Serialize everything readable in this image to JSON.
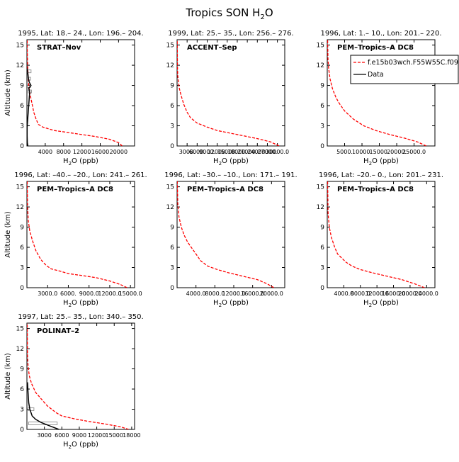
{
  "figure": {
    "title": "Tropics SON H",
    "title_sub": "2",
    "title_tail": "O"
  },
  "colors": {
    "model": "#ff0000",
    "data": "#000000",
    "range": "#999999",
    "frame": "#000000"
  },
  "chart_data": [
    {
      "type": "line",
      "header": "1995, Lat: 18.– 24., Lon: 196.– 204.",
      "campaign": "STRAT–Nov",
      "xlabel_pre": "H",
      "xlabel_sub": "2",
      "xlabel_post": "O (ppb)",
      "ylabel": "Altitude (km)",
      "xlim": [
        0,
        23500
      ],
      "ylim": [
        0,
        15.8
      ],
      "xticks": [
        4000,
        8000,
        12000,
        16000,
        20000
      ],
      "xticklabels": [
        "4000",
        "8000",
        "12000",
        "16000",
        "20000"
      ],
      "yticks": [
        0,
        3,
        6,
        9,
        12,
        15
      ],
      "model": {
        "x": [
          20800,
          20000,
          18000,
          15000,
          12000,
          9000,
          6000,
          3500,
          2500,
          2000,
          1500,
          1200,
          900,
          600,
          400,
          300,
          150,
          80,
          60
        ],
        "y": [
          0,
          0.5,
          1.0,
          1.4,
          1.7,
          2.0,
          2.3,
          2.8,
          3.2,
          4.0,
          5.0,
          6.0,
          7.0,
          8.0,
          9.0,
          10.0,
          12.0,
          14.0,
          15.8
        ]
      },
      "data": {
        "x": [
          200,
          100,
          50,
          50,
          600,
          400,
          900,
          500,
          300,
          200,
          50
        ],
        "y": [
          0,
          0.5,
          1.5,
          2.8,
          8.0,
          8.6,
          9.0,
          9.5,
          10.2,
          10.8,
          11.5
        ]
      },
      "ranges": [
        {
          "y": 8.1,
          "x0": 300,
          "x1": 1000
        },
        {
          "y": 8.9,
          "x0": 100,
          "x1": 800
        },
        {
          "y": 10.0,
          "x0": 100,
          "x1": 800
        },
        {
          "y": 11.1,
          "x0": 100,
          "x1": 900
        }
      ],
      "legend": false
    },
    {
      "type": "line",
      "header": "1999, Lat: 25.– 35., Lon: 256.– 276.",
      "campaign": "ACCENT–Sep",
      "xlabel_pre": "H",
      "xlabel_sub": "2",
      "xlabel_post": "O (ppb)",
      "ylabel": "",
      "xlim": [
        0,
        32200
      ],
      "ylim": [
        0,
        15.8
      ],
      "xticks": [
        3000,
        6000,
        9000,
        12000,
        15000,
        18000,
        21000,
        24000,
        27000,
        30000
      ],
      "xticklabels": [
        "3000.",
        "6000.",
        "9000.",
        "12000.",
        "15000.",
        "18000.",
        "21000.",
        "24000.",
        "27000.",
        "30000.0"
      ],
      "yticks": [
        0,
        3,
        6,
        9,
        12,
        15
      ],
      "model": {
        "x": [
          30500,
          28000,
          24000,
          20000,
          16000,
          12000,
          9000,
          6000,
          4000,
          3000,
          2000,
          1200,
          700,
          400,
          200,
          100,
          50
        ],
        "y": [
          0,
          0.6,
          1.1,
          1.5,
          1.9,
          2.3,
          2.8,
          3.4,
          4.2,
          5.0,
          6.2,
          7.5,
          8.5,
          9.5,
          10.5,
          12.0,
          15.8
        ]
      },
      "data": null,
      "ranges": [],
      "legend": false
    },
    {
      "type": "line",
      "header": "1996, Lat: 1.– 10., Lon: 201.– 220.",
      "campaign": "PEM–Tropics–A DC8",
      "xlabel_pre": "H",
      "xlabel_sub": "2",
      "xlabel_post": "O (ppb)",
      "ylabel": "",
      "xlim": [
        0,
        31000
      ],
      "ylim": [
        0,
        15.8
      ],
      "xticks": [
        5000,
        10000,
        15000,
        20000,
        25000
      ],
      "xticklabels": [
        "5000.",
        "10000.",
        "15000.",
        "20000.",
        "25000.0"
      ],
      "yticks": [
        0,
        3,
        6,
        9,
        12,
        15
      ],
      "model": {
        "x": [
          28500,
          26000,
          22000,
          18000,
          14000,
          10500,
          7500,
          5000,
          3500,
          2500,
          1500,
          800,
          400,
          200,
          100
        ],
        "y": [
          0,
          0.6,
          1.2,
          1.7,
          2.3,
          3.0,
          4.0,
          5.2,
          6.3,
          7.2,
          8.5,
          10.0,
          11.5,
          13.0,
          15.8
        ]
      },
      "data": null,
      "ranges": [],
      "legend": true,
      "legend_items": [
        {
          "label": "f.e15b03wch.F55W55C.f09",
          "key": "model"
        },
        {
          "label": "Data",
          "key": "data"
        }
      ]
    },
    {
      "type": "line",
      "header": "1996, Lat: –40.– –20., Lon: 241.– 261.",
      "campaign": "PEM–Tropics–A DC8",
      "xlabel_pre": "H",
      "xlabel_sub": "2",
      "xlabel_post": "O (ppb)",
      "ylabel": "Altitude (km)",
      "xlim": [
        0,
        15600
      ],
      "ylim": [
        0,
        15.8
      ],
      "xticks": [
        3000,
        6000,
        9000,
        12000,
        15000
      ],
      "xticklabels": [
        "3000.0",
        "6000.",
        "9000.0",
        "12000.0",
        "15000.0"
      ],
      "yticks": [
        0,
        3,
        6,
        9,
        12,
        15
      ],
      "model": {
        "x": [
          14500,
          13500,
          12000,
          10000,
          8000,
          6000,
          5000,
          3500,
          2800,
          2000,
          1300,
          800,
          400,
          200,
          80,
          40
        ],
        "y": [
          0,
          0.5,
          1.0,
          1.5,
          1.8,
          2.1,
          2.4,
          2.8,
          3.3,
          4.2,
          5.5,
          7.0,
          8.5,
          10.0,
          12.5,
          15.8
        ]
      },
      "data": null,
      "ranges": [],
      "legend": false
    },
    {
      "type": "line",
      "header": "1996, Lat: –30.– –10., Lon: 171.– 191.",
      "campaign": "PEM–Tropics–A DC8",
      "xlabel_pre": "H",
      "xlabel_sub": "2",
      "xlabel_post": "O (ppb)",
      "ylabel": "",
      "xlim": [
        0,
        22800
      ],
      "ylim": [
        0,
        15.8
      ],
      "xticks": [
        4000,
        8000,
        12000,
        16000,
        20000
      ],
      "xticklabels": [
        "4000.0",
        "8000.0",
        "12000.0",
        "16000.0",
        "20000.0"
      ],
      "yticks": [
        0,
        3,
        6,
        9,
        12,
        15
      ],
      "model": {
        "x": [
          20500,
          19000,
          17000,
          14000,
          11000,
          8500,
          6500,
          5000,
          4000,
          3000,
          2200,
          1500,
          900,
          400,
          150,
          50
        ],
        "y": [
          0,
          0.6,
          1.2,
          1.7,
          2.2,
          2.7,
          3.2,
          4.0,
          5.0,
          6.0,
          6.8,
          7.8,
          9.0,
          10.5,
          12.5,
          15.8
        ]
      },
      "data": null,
      "ranges": [],
      "legend": false
    },
    {
      "type": "line",
      "header": "1996, Lat: –20.– 0., Lon: 201.– 231.",
      "campaign": "PEM–Tropics–A DC8",
      "xlabel_pre": "H",
      "xlabel_sub": "2",
      "xlabel_post": "O (ppb)",
      "ylabel": "",
      "xlim": [
        0,
        26000
      ],
      "ylim": [
        0,
        15.8
      ],
      "xticks": [
        4000,
        8000,
        12000,
        16000,
        20000,
        24000
      ],
      "xticklabels": [
        "4000.0",
        "8000.0",
        "12000.0",
        "16000.0",
        "20000.0",
        "24000.0"
      ],
      "yticks": [
        0,
        3,
        6,
        9,
        12,
        15
      ],
      "model": {
        "x": [
          23500,
          21000,
          18000,
          14500,
          11000,
          8000,
          6000,
          4500,
          3500,
          2500,
          1800,
          1000,
          500,
          200,
          80
        ],
        "y": [
          0,
          0.6,
          1.2,
          1.7,
          2.2,
          2.7,
          3.2,
          3.8,
          4.4,
          5.0,
          6.0,
          7.5,
          9.0,
          11.0,
          15.8
        ]
      },
      "data": null,
      "ranges": [],
      "legend": false
    },
    {
      "type": "line",
      "header": "1997, Lat: 25.– 35., Lon: 340.– 350.",
      "campaign": "POLINAT–2",
      "xlabel_pre": "H",
      "xlabel_sub": "2",
      "xlabel_post": "O (ppb)",
      "ylabel": "Altitude (km)",
      "xlim": [
        0,
        18500
      ],
      "ylim": [
        0,
        15.8
      ],
      "xticks": [
        3000,
        6000,
        9000,
        12000,
        15000,
        18000
      ],
      "xticklabels": [
        "3000",
        "6000",
        "9000",
        "12000",
        "15000",
        "18000"
      ],
      "yticks": [
        0,
        3,
        6,
        9,
        12,
        15
      ],
      "model": {
        "x": [
          17500,
          16000,
          13500,
          10500,
          8000,
          6000,
          5000,
          3500,
          2500,
          1500,
          800,
          400,
          200,
          100,
          50
        ],
        "y": [
          0,
          0.4,
          0.8,
          1.2,
          1.6,
          2.0,
          2.5,
          3.5,
          4.5,
          5.5,
          6.8,
          8.0,
          9.5,
          11.0,
          15.8
        ]
      },
      "data": {
        "x": [
          5500,
          4000,
          2500,
          1500,
          900,
          500,
          300,
          200,
          100
        ],
        "y": [
          0,
          0.5,
          1.0,
          1.5,
          2.0,
          3.0,
          4.0,
          5.5,
          7.0
        ]
      },
      "ranges": [
        {
          "y": 0.9,
          "x0": 300,
          "x1": 5200
        },
        {
          "y": 3.0,
          "x0": 200,
          "x1": 1200
        }
      ],
      "legend": false
    }
  ]
}
